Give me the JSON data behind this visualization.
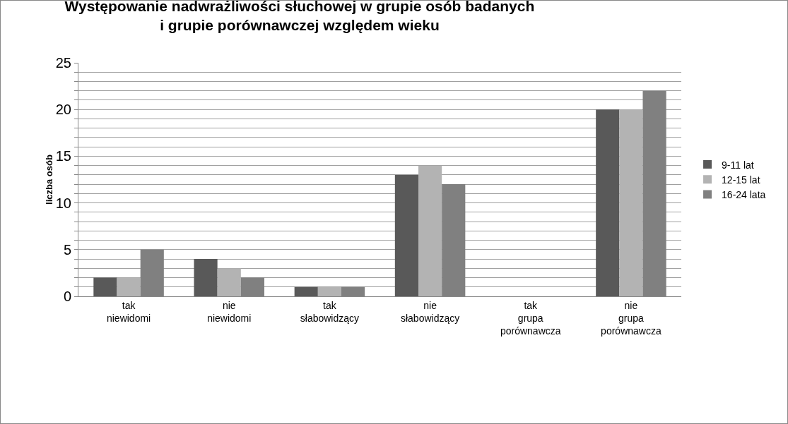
{
  "chart_data": {
    "type": "bar",
    "title": "Występowanie nadwrażliwości słuchowej w grupie osób badanych\ni grupie porównawczej względem wieku",
    "ylabel": "liczba osób",
    "categories": [
      "tak\nniewidomi",
      "nie\nniewidomi",
      "tak\nsłabowidzący",
      "nie\nsłabowidzący",
      "tak\ngrupa\nporównawcza",
      "nie\ngrupa\nporównawcza"
    ],
    "series": [
      {
        "name": "9-11 lat",
        "color": "#595959",
        "values": [
          2,
          4,
          1,
          13,
          0,
          20
        ]
      },
      {
        "name": "12-15 lat",
        "color": "#b3b3b3",
        "values": [
          2,
          3,
          1,
          14,
          0,
          20
        ]
      },
      {
        "name": "16-24 lata",
        "color": "#808080",
        "values": [
          5,
          2,
          1,
          12,
          0,
          22
        ]
      }
    ],
    "ylim": [
      0,
      25
    ],
    "yticks": [
      0,
      {
        "value": 1,
        "label": null
      },
      {
        "value": 2,
        "label": null
      },
      {
        "value": 3,
        "label": null
      },
      {
        "value": 4,
        "label": null
      },
      5,
      {
        "value": 6,
        "label": null
      },
      {
        "value": 7,
        "label": null
      },
      {
        "value": 8,
        "label": null
      },
      {
        "value": 9,
        "label": null
      },
      10,
      {
        "value": 11,
        "label": null
      },
      {
        "value": 12,
        "label": null
      },
      {
        "value": 13,
        "label": null
      },
      {
        "value": 14,
        "label": null
      },
      15,
      {
        "value": 16,
        "label": null
      },
      {
        "value": 17,
        "label": null
      },
      {
        "value": 18,
        "label": null
      },
      {
        "value": 19,
        "label": null
      },
      20,
      {
        "value": 21,
        "label": null
      },
      {
        "value": 22,
        "label": null
      },
      {
        "value": 23,
        "label": null
      },
      {
        "value": 24,
        "label": null
      },
      25
    ],
    "grid": true,
    "legend": "right"
  }
}
